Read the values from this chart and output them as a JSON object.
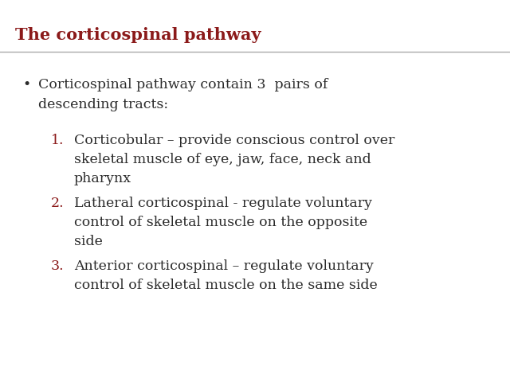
{
  "title": "The corticospinal pathway",
  "title_color": "#8B1A1A",
  "title_fontsize": 15,
  "bg_color": "#FFFFFF",
  "line_color": "#AAAAAA",
  "bullet_text_line1": "Corticospinal pathway contain 3  pairs of",
  "bullet_text_line2": "descending tracts:",
  "bullet_color": "#2B2B2B",
  "bullet_fontsize": 12.5,
  "numbered_color": "#8B1A1A",
  "text_color": "#2B2B2B",
  "numbered_fontsize": 12.5,
  "items": [
    {
      "num": "1.",
      "lines": [
        "Corticobular – provide conscious control over",
        "skeletal muscle of eye, jaw, face, neck and",
        "pharynx"
      ]
    },
    {
      "num": "2.",
      "lines": [
        "Latheral corticospinal - regulate voluntary",
        "control of skeletal muscle on the opposite",
        "side"
      ]
    },
    {
      "num": "3.",
      "lines": [
        "Anterior corticospinal – regulate voluntary",
        "control of skeletal muscle on the same side"
      ]
    }
  ]
}
